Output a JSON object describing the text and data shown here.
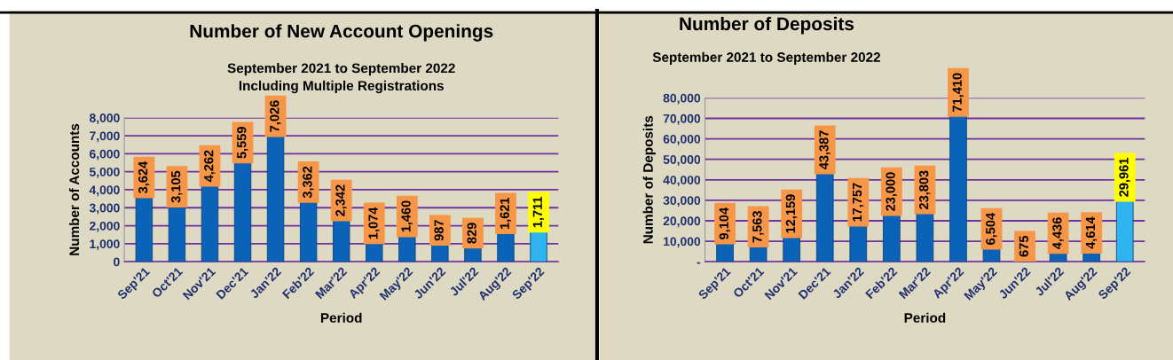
{
  "chart_data": [
    {
      "type": "bar",
      "title": "Number of New Account Openings",
      "subtitle": "September 2021 to September 2022\nIncluding Multiple Registrations",
      "xlabel": "Period",
      "ylabel": "Number of Accounts",
      "categories": [
        "Sep'21",
        "Oct'21",
        "Nov'21",
        "Dec'21",
        "Jan'22",
        "Feb'22",
        "Mar'22",
        "Apr'22",
        "May'22",
        "Jun'22",
        "Jul'22",
        "Aug'22",
        "Sep'22"
      ],
      "values": [
        3624,
        3105,
        4262,
        5559,
        7026,
        3362,
        2342,
        1074,
        1460,
        987,
        829,
        1621,
        1711
      ],
      "value_labels": [
        "3,624",
        "3,105",
        "4,262",
        "5,559",
        "7,026",
        "3,362",
        "2,342",
        "1,074",
        "1,460",
        "987",
        "829",
        "1,621",
        "1,711"
      ],
      "colors": [
        "#0b63b8",
        "#0b63b8",
        "#0b63b8",
        "#0b63b8",
        "#0b63b8",
        "#0b63b8",
        "#0b63b8",
        "#0b63b8",
        "#0b63b8",
        "#0b63b8",
        "#0b63b8",
        "#0b63b8",
        "#2fb4ef"
      ],
      "ylim": [
        0,
        8000
      ],
      "yticks": [
        {
          "value": 0,
          "label": "0"
        },
        {
          "value": 1000,
          "label": "1,000"
        },
        {
          "value": 2000,
          "label": "2,000"
        },
        {
          "value": 3000,
          "label": "3,000"
        },
        {
          "value": 4000,
          "label": "4,000"
        },
        {
          "value": 5000,
          "label": "5,000"
        },
        {
          "value": 6000,
          "label": "6,000"
        },
        {
          "value": 7000,
          "label": "7,000"
        },
        {
          "value": 8000,
          "label": "8,000"
        }
      ],
      "grid": "y",
      "legend": false
    },
    {
      "type": "bar",
      "title": "Number of Deposits",
      "subtitle": "September 2021 to September 2022",
      "xlabel": "Period",
      "ylabel": "Number of Deposits",
      "categories": [
        "Sep'21",
        "Oct'21",
        "Nov'21",
        "Dec'21",
        "Jan'22",
        "Feb'22",
        "Mar'22",
        "Apr'22",
        "May'22",
        "Jun'22",
        "Jul'22",
        "Aug'22",
        "Sep'22"
      ],
      "values": [
        9104,
        7563,
        12159,
        43387,
        17757,
        23000,
        23803,
        71410,
        6504,
        675,
        4436,
        4614,
        29961
      ],
      "value_labels": [
        "9,104",
        "7,563",
        "12,159",
        "43,387",
        "17,757",
        "23,000",
        "23,803",
        "71,410",
        "6,504",
        "675",
        "4,436",
        "4,614",
        "29,961"
      ],
      "colors": [
        "#0b63b8",
        "#0b63b8",
        "#0b63b8",
        "#0b63b8",
        "#0b63b8",
        "#0b63b8",
        "#0b63b8",
        "#0b63b8",
        "#0b63b8",
        "#0b63b8",
        "#0b63b8",
        "#0b63b8",
        "#2fb4ef"
      ],
      "ylim": [
        0,
        80000
      ],
      "yticks": [
        {
          "value": 0,
          "label": "-"
        },
        {
          "value": 10000,
          "label": "10,000"
        },
        {
          "value": 20000,
          "label": "20,000"
        },
        {
          "value": 30000,
          "label": "30,000"
        },
        {
          "value": 40000,
          "label": "40,000"
        },
        {
          "value": 50000,
          "label": "50,000"
        },
        {
          "value": 60000,
          "label": "60,000"
        },
        {
          "value": 70000,
          "label": "70,000"
        },
        {
          "value": 80000,
          "label": "80,000"
        }
      ],
      "grid": "y",
      "legend": false
    }
  ]
}
